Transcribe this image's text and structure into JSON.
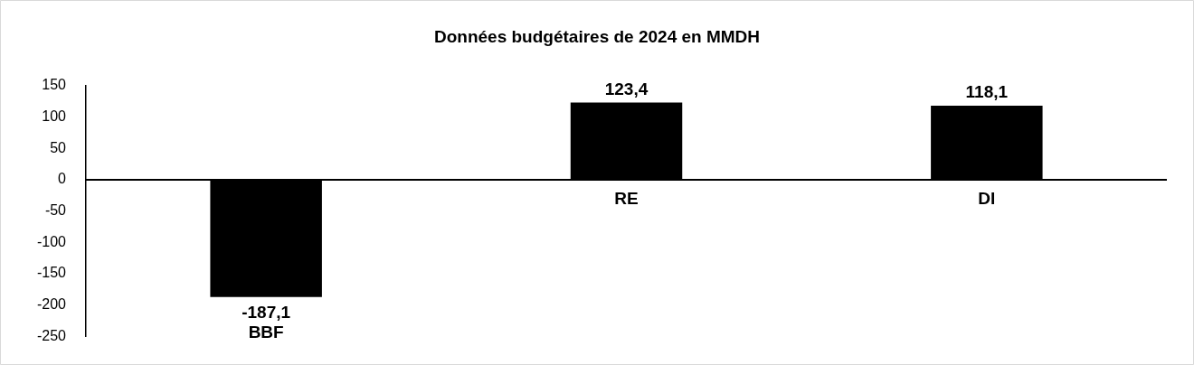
{
  "chart_data": {
    "type": "bar",
    "title": "Données budgétaires de 2024 en MMDH",
    "categories": [
      "BBF",
      "RE",
      "DI"
    ],
    "values": [
      -187.1,
      123.4,
      118.1
    ],
    "value_labels": [
      "-187,1",
      "123,4",
      "118,1"
    ],
    "color": "#000000",
    "ylim": [
      -250,
      150
    ],
    "yticks": [
      -250,
      -200,
      -150,
      -100,
      -50,
      0,
      50,
      100,
      150
    ]
  }
}
